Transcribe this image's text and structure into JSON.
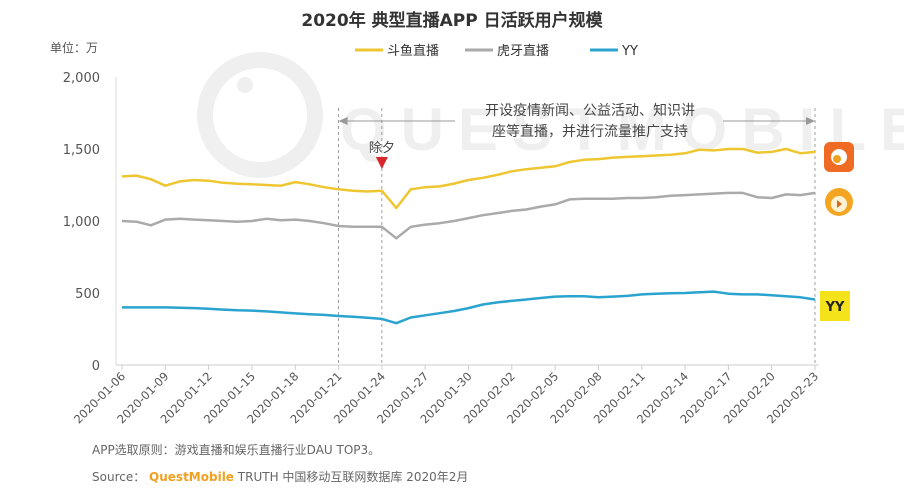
{
  "chart_data": {
    "type": "line",
    "title": "2020年 典型直播APP 日活跃用户规模",
    "ylabel": "单位：万",
    "xlabel": "",
    "ylim": [
      0,
      2000
    ],
    "yticks": [
      "0",
      "500",
      "1,000",
      "1,500",
      "2,000"
    ],
    "ytick_values": [
      0,
      500,
      1000,
      1500,
      2000
    ],
    "grid": false,
    "legend_position": "top-right",
    "x_start": "2020-01-06",
    "x_end": "2020-02-23",
    "xtick_labels": [
      "2020-01-06",
      "2020-01-09",
      "2020-01-12",
      "2020-01-15",
      "2020-01-18",
      "2020-01-21",
      "2020-01-24",
      "2020-01-27",
      "2020-01-30",
      "2020-02-02",
      "2020-02-05",
      "2020-02-08",
      "2020-02-11",
      "2020-02-14",
      "2020-02-17",
      "2020-02-20",
      "2020-02-23"
    ],
    "series": [
      {
        "name": "斗鱼直播",
        "color": "#eec631",
        "icon": "douyu-app-icon",
        "values": [
          1310,
          1315,
          1290,
          1245,
          1275,
          1285,
          1280,
          1265,
          1258,
          1255,
          1250,
          1245,
          1270,
          1255,
          1235,
          1220,
          1210,
          1205,
          1210,
          1090,
          1220,
          1235,
          1240,
          1260,
          1285,
          1300,
          1320,
          1345,
          1360,
          1370,
          1380,
          1410,
          1425,
          1430,
          1440,
          1445,
          1450,
          1455,
          1460,
          1470,
          1495,
          1490,
          1500,
          1500,
          1475,
          1480,
          1500,
          1470,
          1480
        ]
      },
      {
        "name": "虎牙直播",
        "color": "#aaaaaa",
        "icon": "huya-app-icon",
        "values": [
          1000,
          995,
          970,
          1010,
          1015,
          1010,
          1005,
          1000,
          995,
          1000,
          1015,
          1005,
          1010,
          1000,
          985,
          965,
          960,
          960,
          960,
          880,
          960,
          975,
          985,
          1000,
          1020,
          1040,
          1055,
          1070,
          1080,
          1100,
          1115,
          1150,
          1155,
          1155,
          1155,
          1160,
          1160,
          1165,
          1175,
          1180,
          1185,
          1190,
          1195,
          1195,
          1165,
          1160,
          1185,
          1180,
          1195
        ]
      },
      {
        "name": "YY",
        "color": "#2ba3cf",
        "icon": "yy-app-icon",
        "values": [
          400,
          400,
          400,
          400,
          398,
          395,
          390,
          385,
          380,
          378,
          372,
          365,
          358,
          352,
          348,
          340,
          335,
          328,
          320,
          290,
          330,
          345,
          360,
          375,
          395,
          420,
          435,
          445,
          455,
          465,
          475,
          478,
          478,
          470,
          475,
          480,
          490,
          495,
          498,
          500,
          505,
          510,
          495,
          490,
          490,
          485,
          478,
          470,
          455
        ]
      }
    ],
    "annotations": [
      {
        "label": "除夕",
        "date": "2020-01-24",
        "marker": "red-triangle"
      },
      {
        "label": "开设疫情新闻、公益活动、知识讲座等直播，并进行流量推广支持",
        "line1": "开设疫情新闻、公益活动、知识讲",
        "line2": "座等直播，并进行流量推广支持",
        "from": "2020-01-21",
        "to": "2020-02-23"
      }
    ],
    "watermark": "QUESTMOBILE"
  },
  "footer": {
    "note": "APP选取原则：游戏直播和娱乐直播行业DAU TOP3。",
    "source_label": "Source：",
    "source_brand": "QuestMobile",
    "source_rest": "TRUTH 中国移动互联网数据库 2020年2月"
  }
}
